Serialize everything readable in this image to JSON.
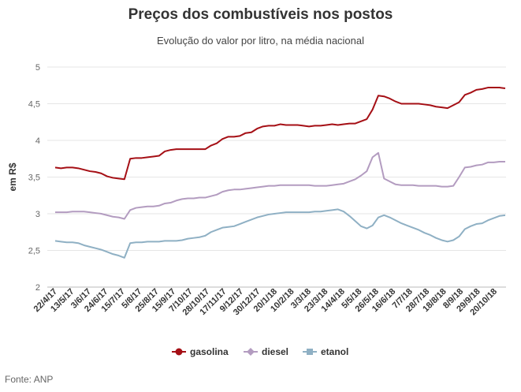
{
  "chart_data": {
    "type": "line",
    "title": "Preços dos combustíveis nos postos",
    "subtitle": "Evolução do valor por litro, na média nacional",
    "xlabel": "",
    "ylabel": "em R$",
    "ylim": [
      2,
      5
    ],
    "yticks": [
      "2",
      "2,5",
      "3",
      "3,5",
      "4",
      "4,5",
      "5"
    ],
    "grid": true,
    "legend_position": "bottom",
    "source": "Fonte: ANP",
    "x_tick_labels": [
      "22/4/17",
      "13/5/17",
      "3/6/17",
      "24/6/17",
      "15/7/17",
      "5/8/17",
      "25/8/17",
      "15/9/17",
      "7/10/17",
      "28/10/17",
      "17/11/17",
      "9/12/17",
      "30/12/17",
      "20/1/18",
      "10/2/18",
      "3/3/18",
      "23/3/18",
      "14/4/18",
      "5/5/18",
      "26/5/18",
      "16/6/18",
      "7/7/18",
      "28/7/18",
      "18/8/18",
      "8/9/18",
      "29/9/18",
      "20/10/18"
    ],
    "series": [
      {
        "name": "gasolina",
        "color": "#a50f15",
        "marker": "circle",
        "values": [
          3.63,
          3.62,
          3.63,
          3.63,
          3.62,
          3.6,
          3.58,
          3.57,
          3.55,
          3.51,
          3.49,
          3.48,
          3.47,
          3.75,
          3.76,
          3.76,
          3.77,
          3.78,
          3.79,
          3.85,
          3.87,
          3.88,
          3.88,
          3.88,
          3.88,
          3.88,
          3.88,
          3.93,
          3.96,
          4.02,
          4.05,
          4.05,
          4.06,
          4.1,
          4.11,
          4.16,
          4.19,
          4.2,
          4.2,
          4.22,
          4.21,
          4.21,
          4.21,
          4.2,
          4.19,
          4.2,
          4.2,
          4.21,
          4.22,
          4.21,
          4.22,
          4.23,
          4.23,
          4.26,
          4.29,
          4.42,
          4.61,
          4.6,
          4.57,
          4.53,
          4.5,
          4.5,
          4.5,
          4.5,
          4.49,
          4.48,
          4.46,
          4.45,
          4.44,
          4.48,
          4.52,
          4.62,
          4.65,
          4.69,
          4.7,
          4.72,
          4.72,
          4.72,
          4.71
        ]
      },
      {
        "name": "diesel",
        "color": "#b39cc0",
        "marker": "diamond",
        "values": [
          3.02,
          3.02,
          3.02,
          3.03,
          3.03,
          3.03,
          3.02,
          3.01,
          3.0,
          2.98,
          2.96,
          2.95,
          2.93,
          3.05,
          3.08,
          3.09,
          3.1,
          3.1,
          3.11,
          3.14,
          3.15,
          3.18,
          3.2,
          3.21,
          3.21,
          3.22,
          3.22,
          3.24,
          3.26,
          3.3,
          3.32,
          3.33,
          3.33,
          3.34,
          3.35,
          3.36,
          3.37,
          3.38,
          3.38,
          3.39,
          3.39,
          3.39,
          3.39,
          3.39,
          3.39,
          3.38,
          3.38,
          3.38,
          3.39,
          3.4,
          3.41,
          3.44,
          3.47,
          3.52,
          3.58,
          3.77,
          3.83,
          3.48,
          3.44,
          3.4,
          3.39,
          3.39,
          3.39,
          3.38,
          3.38,
          3.38,
          3.38,
          3.37,
          3.37,
          3.38,
          3.5,
          3.63,
          3.64,
          3.66,
          3.67,
          3.7,
          3.7,
          3.71,
          3.71
        ]
      },
      {
        "name": "etanol",
        "color": "#8fb0c4",
        "marker": "square",
        "values": [
          2.63,
          2.62,
          2.61,
          2.61,
          2.6,
          2.57,
          2.55,
          2.53,
          2.51,
          2.48,
          2.45,
          2.43,
          2.4,
          2.6,
          2.61,
          2.61,
          2.62,
          2.62,
          2.62,
          2.63,
          2.63,
          2.63,
          2.64,
          2.66,
          2.67,
          2.68,
          2.7,
          2.75,
          2.78,
          2.81,
          2.82,
          2.83,
          2.86,
          2.89,
          2.92,
          2.95,
          2.97,
          2.99,
          3.0,
          3.01,
          3.02,
          3.02,
          3.02,
          3.02,
          3.02,
          3.03,
          3.03,
          3.04,
          3.05,
          3.06,
          3.03,
          2.97,
          2.9,
          2.83,
          2.8,
          2.84,
          2.95,
          2.98,
          2.95,
          2.91,
          2.87,
          2.84,
          2.81,
          2.78,
          2.74,
          2.71,
          2.67,
          2.64,
          2.62,
          2.64,
          2.69,
          2.79,
          2.83,
          2.86,
          2.87,
          2.91,
          2.94,
          2.97,
          2.98
        ]
      }
    ]
  }
}
